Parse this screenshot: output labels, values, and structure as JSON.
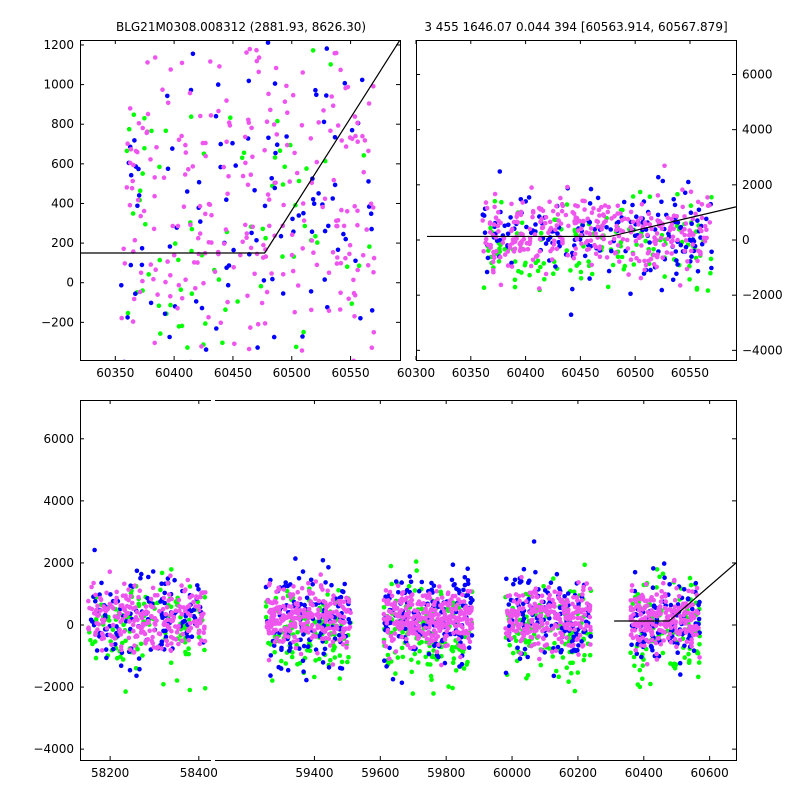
{
  "header": {
    "left_title": "BLG21M0308.008312 (2881.93, 8626.30)",
    "right_title": "3 455 1646.07 0.044 394 [60563.914, 60567.879]"
  },
  "colors": {
    "green": "#00ff00",
    "blue": "#0000ff",
    "magenta": "#ee55ee",
    "model_line": "#000000",
    "background": "#ffffff"
  },
  "chart_data": [
    {
      "id": "top-left",
      "type": "scatter",
      "title": "",
      "xlabel": "",
      "ylabel": "",
      "xlim": [
        60320,
        60592
      ],
      "ylim": [
        -390,
        1225
      ],
      "xticks": [
        60350,
        60400,
        60450,
        60500,
        60550
      ],
      "yticks": [
        -200,
        0,
        200,
        400,
        600,
        800,
        1000,
        1200
      ],
      "yaxis_side": "left",
      "grid": false,
      "series": [
        {
          "color": "green",
          "n_points": 90,
          "x_range": [
            60355,
            60570
          ],
          "center": 240,
          "spread": 480
        },
        {
          "color": "blue",
          "n_points": 110,
          "x_range": [
            60355,
            60570
          ],
          "center": 320,
          "spread": 460
        },
        {
          "color": "magenta",
          "n_points": 260,
          "x_range": [
            60355,
            60570
          ],
          "center": 420,
          "spread": 440
        }
      ],
      "model_line": {
        "x": [
          60320,
          60477,
          60592
        ],
        "y": [
          150,
          150,
          1225
        ]
      }
    },
    {
      "id": "top-right",
      "type": "scatter",
      "title": "",
      "xlabel": "",
      "ylabel": "",
      "xlim": [
        60300,
        60592
      ],
      "ylim": [
        -4350,
        7250
      ],
      "xticks": [
        60300,
        60350,
        60400,
        60450,
        60500,
        60550
      ],
      "yticks": [
        -4000,
        -2000,
        0,
        2000,
        4000,
        6000
      ],
      "yaxis_side": "right",
      "grid": false,
      "series": [
        {
          "color": "green",
          "n_points": 140,
          "x_range": [
            60360,
            60570
          ],
          "center": -150,
          "spread": 750
        },
        {
          "color": "blue",
          "n_points": 170,
          "x_range": [
            60360,
            60570
          ],
          "center": 200,
          "spread": 800
        },
        {
          "color": "magenta",
          "n_points": 330,
          "x_range": [
            60360,
            60570
          ],
          "center": 300,
          "spread": 700
        }
      ],
      "model_line": {
        "x": [
          60310,
          60477,
          60592
        ],
        "y": [
          130,
          130,
          1200
        ]
      }
    },
    {
      "id": "bottom",
      "type": "scatter",
      "title": "",
      "xlabel": "",
      "ylabel": "",
      "axis_break": {
        "left_xlim": [
          58132,
          58432
        ],
        "right_xlim": [
          59092,
          60680
        ]
      },
      "ylim": [
        -4350,
        7250
      ],
      "xticks": [
        58200,
        58400,
        59400,
        59600,
        59800,
        60000,
        60200,
        60400,
        60600
      ],
      "yticks": [
        -4000,
        -2000,
        0,
        2000,
        4000,
        6000
      ],
      "yaxis_side": "left",
      "grid": false,
      "seasons": [
        {
          "x_range": [
            58150,
            58415
          ],
          "n_points": 500
        },
        {
          "x_range": [
            59250,
            59510
          ],
          "n_points": 500
        },
        {
          "x_range": [
            59610,
            59880
          ],
          "n_points": 600
        },
        {
          "x_range": [
            59980,
            60240
          ],
          "n_points": 500
        },
        {
          "x_range": [
            60360,
            60570
          ],
          "n_points": 450
        }
      ],
      "series": [
        {
          "color": "green",
          "center": -150,
          "spread": 800
        },
        {
          "color": "blue",
          "center": 150,
          "spread": 750
        },
        {
          "color": "magenta",
          "center": 200,
          "spread": 500
        }
      ],
      "model_line": {
        "x": [
          60310,
          60477,
          60680
        ],
        "y": [
          130,
          130,
          2000
        ]
      }
    }
  ]
}
